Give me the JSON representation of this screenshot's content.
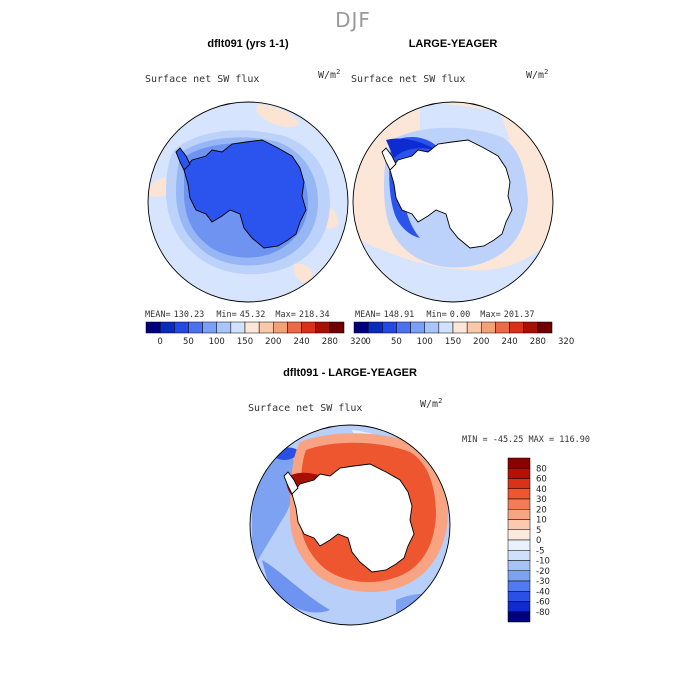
{
  "figure": {
    "season": "DJF"
  },
  "chart_data": [
    {
      "type": "heatmap",
      "panel": "top-left",
      "title": "dflt091 (yrs 1-1)",
      "variable": "Surface net SW flux",
      "units_base": "W/m",
      "units_exp": "2",
      "mean_label": "MEAN=",
      "mean": "130.23",
      "min_label": "Min=",
      "min": "45.32",
      "max_label": "Max=",
      "max": "218.34",
      "colorbar_ticks": [
        "0",
        "50",
        "100",
        "150",
        "200",
        "240",
        "280",
        "320"
      ]
    },
    {
      "type": "heatmap",
      "panel": "top-right",
      "title": "LARGE-YEAGER",
      "variable": "Surface net SW flux",
      "units_base": "W/m",
      "units_exp": "2",
      "mean_label": "MEAN=",
      "mean": "148.91",
      "min_label": "Min=",
      "min": "0.00",
      "max_label": "Max=",
      "max": "201.37",
      "colorbar_ticks": [
        "0",
        "50",
        "100",
        "150",
        "200",
        "240",
        "280",
        "320"
      ]
    },
    {
      "type": "heatmap",
      "panel": "bottom",
      "title": "dflt091 - LARGE-YEAGER",
      "variable": "Surface net SW flux",
      "units_base": "W/m",
      "units_exp": "2",
      "minmax_text": "MIN = -45.25  MAX = 116.90",
      "colorbar_ticks": [
        "80",
        "60",
        "40",
        "30",
        "20",
        "10",
        "5",
        "0",
        "-5",
        "-10",
        "-20",
        "-30",
        "-40",
        "-60",
        "-80"
      ]
    }
  ],
  "colors": {
    "abs_scale": [
      "#00007f",
      "#0c28c0",
      "#2448e0",
      "#4a72f0",
      "#7aa0f8",
      "#a8c4fb",
      "#d2e2fd",
      "#fbe6d8",
      "#f8c8a8",
      "#f5a07a",
      "#ee6a45",
      "#d83218",
      "#a80f06",
      "#6e0000"
    ],
    "diff_scale": [
      "#8c0000",
      "#b81000",
      "#d83218",
      "#ee5630",
      "#f47c55",
      "#f8a483",
      "#fbc9b0",
      "#fdeadf",
      "#e9f1fd",
      "#cfe0fb",
      "#a6c2f7",
      "#7ea2f2",
      "#4f7af0",
      "#2b50e6",
      "#0d2bd0",
      "#00007f"
    ],
    "land_dark": "#2b53ee",
    "land_white": "#ffffff"
  }
}
